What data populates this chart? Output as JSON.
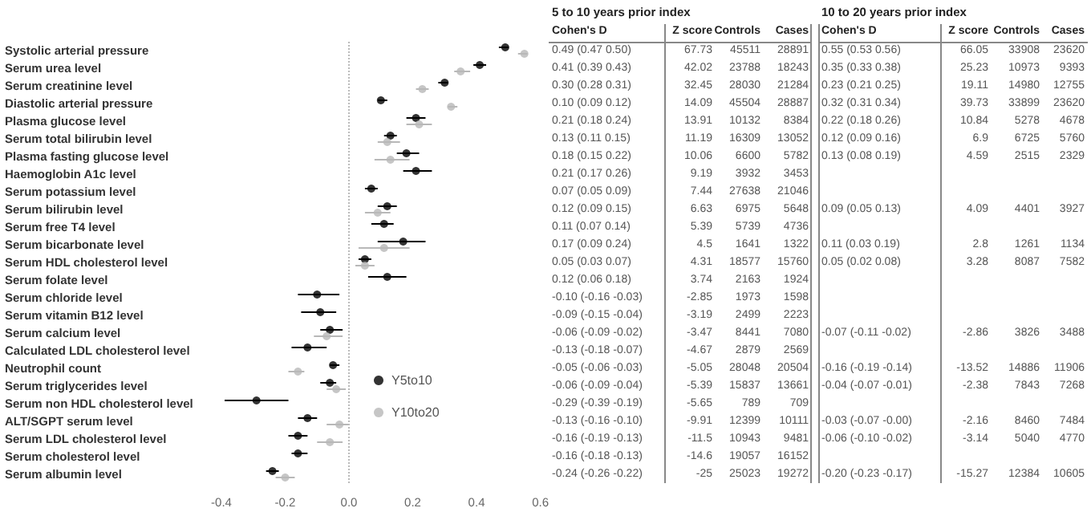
{
  "chart_data": [
    {
      "type": "scatter",
      "orientation": "horizontal",
      "categories": [
        "Systolic arterial pressure",
        "Serum urea level",
        "Serum creatinine level",
        "Diastolic arterial pressure",
        "Plasma glucose level",
        "Serum total bilirubin level",
        "Plasma fasting glucose level",
        "Haemoglobin A1c level",
        "Serum potassium level",
        "Serum bilirubin level",
        "Serum free T4 level",
        "Serum bicarbonate level",
        "Serum HDL cholesterol level",
        "Serum folate level",
        "Serum chloride level",
        "Serum vitamin B12 level",
        "Serum calcium level",
        "Calculated LDL cholesterol level",
        "Neutrophil count",
        "Serum triglycerides level",
        "Serum non HDL cholesterol level",
        "ALT/SGPT serum level",
        "Serum LDL cholesterol level",
        "Serum cholesterol level",
        "Serum albumin level"
      ],
      "series": [
        {
          "name": "Y5to10",
          "color": "#000000",
          "values": [
            0.49,
            0.41,
            0.3,
            0.1,
            0.21,
            0.13,
            0.18,
            0.21,
            0.07,
            0.12,
            0.11,
            0.17,
            0.05,
            0.12,
            -0.1,
            -0.09,
            -0.06,
            -0.13,
            -0.05,
            -0.06,
            -0.29,
            -0.13,
            -0.16,
            -0.16,
            -0.24
          ],
          "errors": [
            [
              0.47,
              0.5
            ],
            [
              0.39,
              0.43
            ],
            [
              0.28,
              0.31
            ],
            [
              0.09,
              0.12
            ],
            [
              0.18,
              0.24
            ],
            [
              0.11,
              0.15
            ],
            [
              0.15,
              0.22
            ],
            [
              0.17,
              0.26
            ],
            [
              0.05,
              0.09
            ],
            [
              0.09,
              0.15
            ],
            [
              0.07,
              0.14
            ],
            [
              0.09,
              0.24
            ],
            [
              0.03,
              0.07
            ],
            [
              0.06,
              0.18
            ],
            [
              -0.16,
              -0.03
            ],
            [
              -0.15,
              -0.04
            ],
            [
              -0.09,
              -0.02
            ],
            [
              -0.18,
              -0.07
            ],
            [
              -0.06,
              -0.03
            ],
            [
              -0.09,
              -0.04
            ],
            [
              -0.39,
              -0.19
            ],
            [
              -0.16,
              -0.1
            ],
            [
              -0.19,
              -0.13
            ],
            [
              -0.18,
              -0.13
            ],
            [
              -0.26,
              -0.22
            ]
          ]
        },
        {
          "name": "Y10to20",
          "color": "#b8b8b8",
          "values": [
            0.55,
            0.35,
            0.23,
            0.32,
            0.22,
            0.12,
            0.13,
            null,
            null,
            0.09,
            null,
            0.11,
            0.05,
            null,
            null,
            null,
            -0.07,
            null,
            -0.16,
            -0.04,
            null,
            -0.03,
            -0.06,
            null,
            -0.2
          ],
          "errors": [
            [
              0.53,
              0.56
            ],
            [
              0.33,
              0.38
            ],
            [
              0.21,
              0.25
            ],
            [
              0.31,
              0.34
            ],
            [
              0.18,
              0.26
            ],
            [
              0.09,
              0.16
            ],
            [
              0.08,
              0.19
            ],
            null,
            null,
            [
              0.05,
              0.13
            ],
            null,
            [
              0.03,
              0.19
            ],
            [
              0.02,
              0.08
            ],
            null,
            null,
            null,
            [
              -0.11,
              -0.02
            ],
            null,
            [
              -0.19,
              -0.14
            ],
            [
              -0.07,
              -0.01
            ],
            null,
            [
              -0.07,
              0.0
            ],
            [
              -0.1,
              -0.02
            ],
            null,
            [
              -0.23,
              -0.17
            ]
          ]
        }
      ],
      "xlim": [
        -0.4,
        0.6
      ],
      "xticks": [
        -0.4,
        -0.2,
        {
          "value": 0,
          "label": "0.0"
        },
        0.2,
        0.4,
        0.6
      ],
      "ref_lines": [
        {
          "axis": "x",
          "value": 0,
          "line_style": "dotted",
          "color": "#bbbbbb"
        }
      ],
      "grid": false,
      "legend": "right",
      "marker": "circle"
    },
    {
      "type": "other",
      "title": "5 to 10 years prior index",
      "categories": [
        "Cohen's D",
        "Z score",
        "Controls",
        "Cases"
      ],
      "cell_labels": [
        [
          "0.49 (0.47 0.50)",
          "67.73",
          "45511",
          "28891"
        ],
        [
          "0.41 (0.39 0.43)",
          "42.02",
          "23788",
          "18243"
        ],
        [
          "0.30 (0.28 0.31)",
          "32.45",
          "28030",
          "21284"
        ],
        [
          "0.10 (0.09 0.12)",
          "14.09",
          "45504",
          "28887"
        ],
        [
          "0.21 (0.18 0.24)",
          "13.91",
          "10132",
          "8384"
        ],
        [
          "0.13 (0.11 0.15)",
          "11.19",
          "16309",
          "13052"
        ],
        [
          "0.18 (0.15 0.22)",
          "10.06",
          "6600",
          "5782"
        ],
        [
          "0.21 (0.17 0.26)",
          "9.19",
          "3932",
          "3453"
        ],
        [
          "0.07 (0.05 0.09)",
          "7.44",
          "27638",
          "21046"
        ],
        [
          "0.12 (0.09 0.15)",
          "6.63",
          "6975",
          "5648"
        ],
        [
          "0.11 (0.07 0.14)",
          "5.39",
          "5739",
          "4736"
        ],
        [
          "0.17 (0.09 0.24)",
          "4.5",
          "1641",
          "1322"
        ],
        [
          "0.05 (0.03 0.07)",
          "4.31",
          "18577",
          "15760"
        ],
        [
          "0.12 (0.06 0.18)",
          "3.74",
          "2163",
          "1924"
        ],
        [
          "-0.10 (-0.16 -0.03)",
          "-2.85",
          "1973",
          "1598"
        ],
        [
          "-0.09 (-0.15 -0.04)",
          "-3.19",
          "2499",
          "2223"
        ],
        [
          "-0.06 (-0.09 -0.02)",
          "-3.47",
          "8441",
          "7080"
        ],
        [
          "-0.13 (-0.18 -0.07)",
          "-4.67",
          "2879",
          "2569"
        ],
        [
          "-0.05 (-0.06 -0.03)",
          "-5.05",
          "28048",
          "20504"
        ],
        [
          "-0.06 (-0.09 -0.04)",
          "-5.39",
          "15837",
          "13661"
        ],
        [
          "-0.29 (-0.39 -0.19)",
          "-5.65",
          "789",
          "709"
        ],
        [
          "-0.13 (-0.16 -0.10)",
          "-9.91",
          "12399",
          "10111"
        ],
        [
          "-0.16 (-0.19 -0.13)",
          "-11.5",
          "10943",
          "9481"
        ],
        [
          "-0.16 (-0.18 -0.13)",
          "-14.6",
          "19057",
          "16152"
        ],
        [
          "-0.24 (-0.26 -0.22)",
          "-25",
          "25023",
          "19272"
        ]
      ]
    },
    {
      "type": "other",
      "title": "10 to 20 years prior index",
      "categories": [
        "Cohen's D",
        "Z score",
        "Controls",
        "Cases"
      ],
      "cell_labels": [
        [
          "0.55 (0.53 0.56)",
          "66.05",
          "33908",
          "23620"
        ],
        [
          "0.35 (0.33 0.38)",
          "25.23",
          "10973",
          "9393"
        ],
        [
          "0.23 (0.21 0.25)",
          "19.11",
          "14980",
          "12755"
        ],
        [
          "0.32 (0.31 0.34)",
          "39.73",
          "33899",
          "23620"
        ],
        [
          "0.22 (0.18 0.26)",
          "10.84",
          "5278",
          "4678"
        ],
        [
          "0.12 (0.09 0.16)",
          "6.9",
          "6725",
          "5760"
        ],
        [
          "0.13 (0.08 0.19)",
          "4.59",
          "2515",
          "2329"
        ],
        [
          null,
          null,
          null,
          null
        ],
        [
          null,
          null,
          null,
          null
        ],
        [
          "0.09 (0.05 0.13)",
          "4.09",
          "4401",
          "3927"
        ],
        [
          null,
          null,
          null,
          null
        ],
        [
          "0.11 (0.03 0.19)",
          "2.8",
          "1261",
          "1134"
        ],
        [
          "0.05 (0.02 0.08)",
          "3.28",
          "8087",
          "7582"
        ],
        [
          null,
          null,
          null,
          null
        ],
        [
          null,
          null,
          null,
          null
        ],
        [
          null,
          null,
          null,
          null
        ],
        [
          "-0.07 (-0.11 -0.02)",
          "-2.86",
          "3826",
          "3488"
        ],
        [
          null,
          null,
          null,
          null
        ],
        [
          "-0.16 (-0.19 -0.14)",
          "-13.52",
          "14886",
          "11906"
        ],
        [
          "-0.04 (-0.07 -0.01)",
          "-2.38",
          "7843",
          "7268"
        ],
        [
          null,
          null,
          null,
          null
        ],
        [
          "-0.03 (-0.07 -0.00)",
          "-2.16",
          "8460",
          "7484"
        ],
        [
          "-0.06 (-0.10 -0.02)",
          "-3.14",
          "5040",
          "4770"
        ],
        [
          null,
          null,
          null,
          null
        ],
        [
          "-0.20 (-0.23 -0.17)",
          "-15.27",
          "12384",
          "10605"
        ]
      ]
    }
  ]
}
